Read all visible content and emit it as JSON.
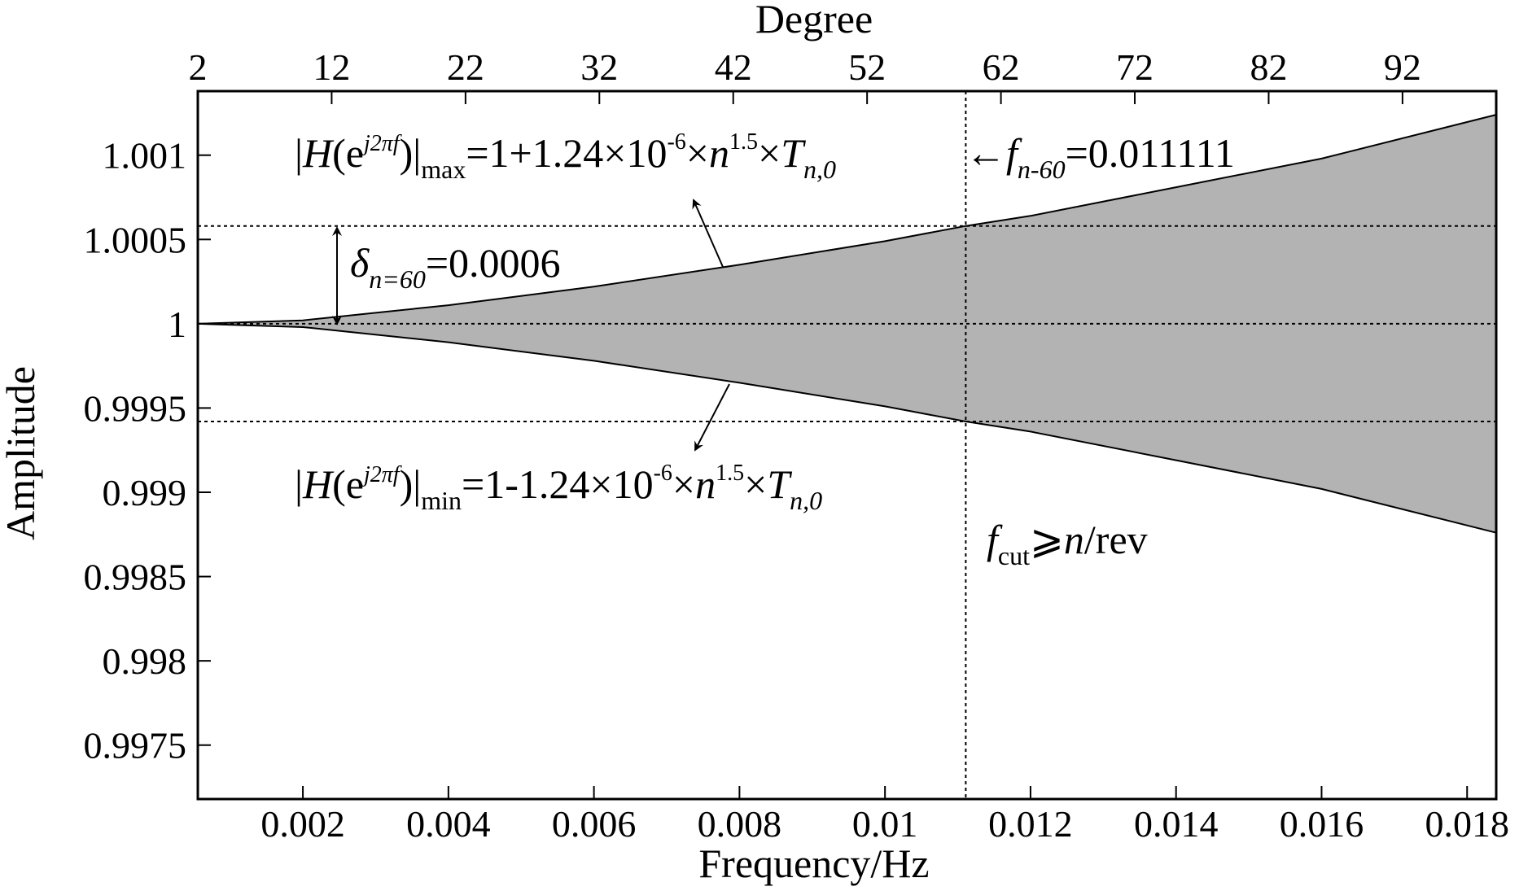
{
  "chart_data": {
    "type": "area",
    "xlabel": "Frequency/Hz",
    "ylabel": "Amplitude",
    "x2label": "Degree",
    "xlim": [
      0.000556,
      0.0184
    ],
    "ylim": [
      0.99718,
      1.00138
    ],
    "x_ticks": [
      {
        "value": 0.002,
        "label": "0.002"
      },
      {
        "value": 0.004,
        "label": "0.004"
      },
      {
        "value": 0.006,
        "label": "0.006"
      },
      {
        "value": 0.008,
        "label": "0.008"
      },
      {
        "value": 0.01,
        "label": "0.01"
      },
      {
        "value": 0.012,
        "label": "0.012"
      },
      {
        "value": 0.014,
        "label": "0.014"
      },
      {
        "value": 0.016,
        "label": "0.016"
      },
      {
        "value": 0.018,
        "label": "0.018"
      }
    ],
    "x2_ticks": [
      {
        "value": 2,
        "label": "2"
      },
      {
        "value": 12,
        "label": "12"
      },
      {
        "value": 22,
        "label": "22"
      },
      {
        "value": 32,
        "label": "32"
      },
      {
        "value": 42,
        "label": "42"
      },
      {
        "value": 52,
        "label": "52"
      },
      {
        "value": 62,
        "label": "62"
      },
      {
        "value": 72,
        "label": "72"
      },
      {
        "value": 82,
        "label": "82"
      },
      {
        "value": 92,
        "label": "92"
      }
    ],
    "x2lim": [
      2,
      99
    ],
    "y_ticks": [
      {
        "value": 1.001,
        "label": "1.001"
      },
      {
        "value": 1.0005,
        "label": "1.0005"
      },
      {
        "value": 1.0,
        "label": "1"
      },
      {
        "value": 0.9995,
        "label": "0.9995"
      },
      {
        "value": 0.999,
        "label": "0.999"
      },
      {
        "value": 0.9985,
        "label": "0.9985"
      },
      {
        "value": 0.998,
        "label": "0.998"
      },
      {
        "value": 0.9975,
        "label": "0.9975"
      }
    ],
    "envelope": {
      "x": [
        0.000556,
        0.002,
        0.004,
        0.006,
        0.008,
        0.01,
        0.01111,
        0.012,
        0.014,
        0.016,
        0.0184
      ],
      "upper": [
        1.0,
        1.00002,
        1.00011,
        1.00022,
        1.00035,
        1.00049,
        1.00058,
        1.00064,
        1.00081,
        1.00098,
        1.00124
      ],
      "lower": [
        1.0,
        0.99998,
        0.99989,
        0.99978,
        0.99965,
        0.99951,
        0.99942,
        0.99936,
        0.99919,
        0.99902,
        0.99876
      ],
      "fill_color": "#b3b3b3"
    },
    "reference_lines": {
      "horizontal": [
        1.00058,
        1.0,
        0.99942
      ],
      "vertical_x": 0.01111
    },
    "annotations": {
      "hmax": {
        "H": "H",
        "e": "e",
        "exp": "j2πf",
        "sub": "max",
        "rhs": "=1+1.24×10",
        "pow": "-6",
        "times1": "×",
        "n": "n",
        "npow": "1.5",
        "times2": "×",
        "T": "T",
        "Tsub": "n,0"
      },
      "hmin": {
        "H": "H",
        "e": "e",
        "exp": "j2πf",
        "sub": "min",
        "rhs": "=1-1.24×10",
        "pow": "-6",
        "times1": "×",
        "n": "n",
        "npow": "1.5",
        "times2": "×",
        "T": "T",
        "Tsub": "n,0"
      },
      "delta": {
        "sym": "δ",
        "sub": "n=60",
        "value": "=0.0006"
      },
      "fn60": {
        "arrow": "←",
        "f": "f",
        "sub": "n-60",
        "value": "=0.011111"
      },
      "fcut": {
        "f": "f",
        "sub": "cut",
        "rel": "⩾",
        "n": "n",
        "rest": "/rev"
      }
    },
    "colors": {
      "fill": "#b3b3b3",
      "line": "#000000",
      "background": "#ffffff"
    }
  }
}
